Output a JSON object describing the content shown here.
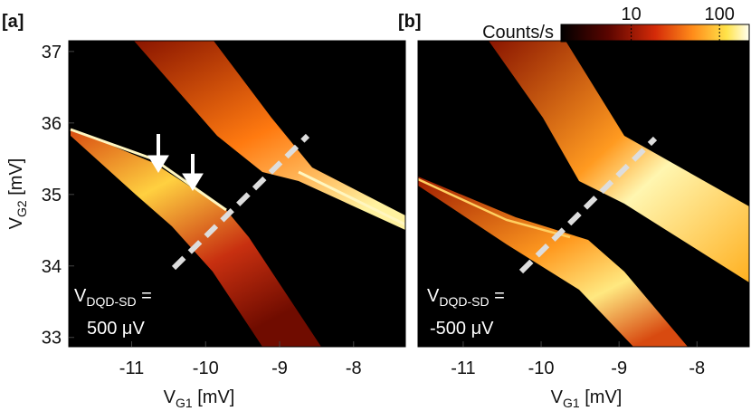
{
  "chart_data": [
    {
      "type": "heatmap",
      "panel_label": "[a]",
      "xlabel": {
        "main": "V",
        "sub": "G1",
        "unit": " [mV]"
      },
      "ylabel": {
        "main": "V",
        "sub": "G2",
        "unit": " [mV]"
      },
      "xlim": [
        -11.85,
        -7.3
      ],
      "xticks": [
        -11,
        -10,
        -9,
        -8
      ],
      "ylim": [
        32.87,
        37.15
      ],
      "yticks": [
        33,
        34,
        35,
        36,
        37
      ],
      "annotation": {
        "main": "V",
        "sub": "DQD-SD",
        "eq": " =",
        "value": "500 μV"
      }
    },
    {
      "type": "heatmap",
      "panel_label": "[b]",
      "xlabel": {
        "main": "V",
        "sub": "G1",
        "unit": " [mV]"
      },
      "xlim": [
        -11.58,
        -7.33
      ],
      "xticks": [
        -11,
        -10,
        -9,
        -8
      ],
      "ylim": [
        32.87,
        37.15
      ],
      "annotation": {
        "main": "V",
        "sub": "DQD-SD",
        "eq": " =",
        "value": "-500 μV"
      },
      "colorbar": {
        "label": "Counts/s",
        "lim": [
          1.6,
          217
        ],
        "ticks": [
          10,
          100
        ],
        "log": true
      }
    }
  ]
}
